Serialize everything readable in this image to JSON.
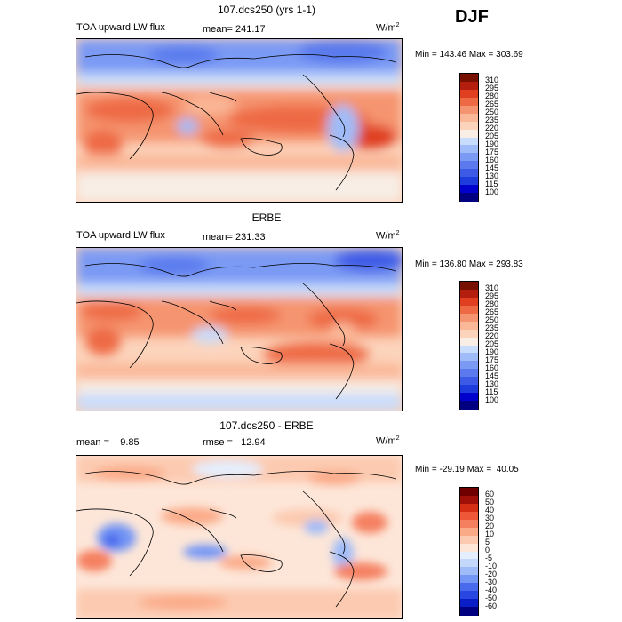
{
  "season": "DJF",
  "panels": [
    {
      "title": "107.dcs250 (yrs 1-1)",
      "left_label": "TOA upward LW flux",
      "mid_label": "mean= 241.17",
      "units": "W/m",
      "units_sup": "2",
      "minmax": "Min = 143.46 Max = 303.69",
      "colorbar_levels": [
        "310",
        "295",
        "280",
        "265",
        "250",
        "235",
        "220",
        "205",
        "190",
        "175",
        "160",
        "145",
        "130",
        "115",
        "100"
      ]
    },
    {
      "title": "ERBE",
      "left_label": "TOA upward LW flux",
      "mid_label": "mean= 231.33",
      "units": "W/m",
      "units_sup": "2",
      "minmax": "Min = 136.80 Max = 293.83",
      "colorbar_levels": [
        "310",
        "295",
        "280",
        "265",
        "250",
        "235",
        "220",
        "205",
        "190",
        "175",
        "160",
        "145",
        "130",
        "115",
        "100"
      ]
    },
    {
      "title": "107.dcs250 - ERBE",
      "left_label": "mean =    9.85",
      "mid_label": "rmse =   12.94",
      "units": "W/m",
      "units_sup": "2",
      "minmax": "Min = -29.19 Max =  40.05",
      "colorbar_levels": [
        "60",
        "50",
        "40",
        "30",
        "20",
        "10",
        "5",
        "0",
        "-5",
        "-10",
        "-20",
        "-30",
        "-40",
        "-50",
        "-60"
      ]
    }
  ],
  "chart_data": [
    {
      "type": "heatmap",
      "title": "107.dcs250 (yrs 1-1)",
      "variable": "TOA upward LW flux",
      "units": "W/m2",
      "mean": 241.17,
      "min": 143.46,
      "max": 303.69,
      "levels": [
        100,
        115,
        130,
        145,
        160,
        175,
        190,
        205,
        220,
        235,
        250,
        265,
        280,
        295,
        310
      ]
    },
    {
      "type": "heatmap",
      "title": "ERBE",
      "variable": "TOA upward LW flux",
      "units": "W/m2",
      "mean": 231.33,
      "min": 136.8,
      "max": 293.83,
      "levels": [
        100,
        115,
        130,
        145,
        160,
        175,
        190,
        205,
        220,
        235,
        250,
        265,
        280,
        295,
        310
      ]
    },
    {
      "type": "heatmap",
      "title": "107.dcs250 - ERBE",
      "units": "W/m2",
      "mean": 9.85,
      "rmse": 12.94,
      "min": -29.19,
      "max": 40.05,
      "levels": [
        -60,
        -50,
        -40,
        -30,
        -20,
        -10,
        -5,
        0,
        5,
        10,
        20,
        30,
        40,
        50,
        60
      ]
    }
  ],
  "colors": {
    "abs_scale": [
      "#000080",
      "#0000cd",
      "#1e3cdc",
      "#3c5ae6",
      "#5a7aee",
      "#7a9af4",
      "#a0bcf8",
      "#c8dcfc",
      "#f8eee6",
      "#fcd4bc",
      "#fab898",
      "#f59470",
      "#ee6a44",
      "#e04020",
      "#b41e0e",
      "#781000"
    ],
    "diff_scale": [
      "#000080",
      "#0a1ec8",
      "#2846e0",
      "#4a6aee",
      "#7496f4",
      "#a0bcf8",
      "#c4d8fc",
      "#e4eefc",
      "#fde6d8",
      "#fccab0",
      "#fbaa88",
      "#f58060",
      "#ee5838",
      "#d42e14",
      "#a01008",
      "#700000"
    ]
  }
}
